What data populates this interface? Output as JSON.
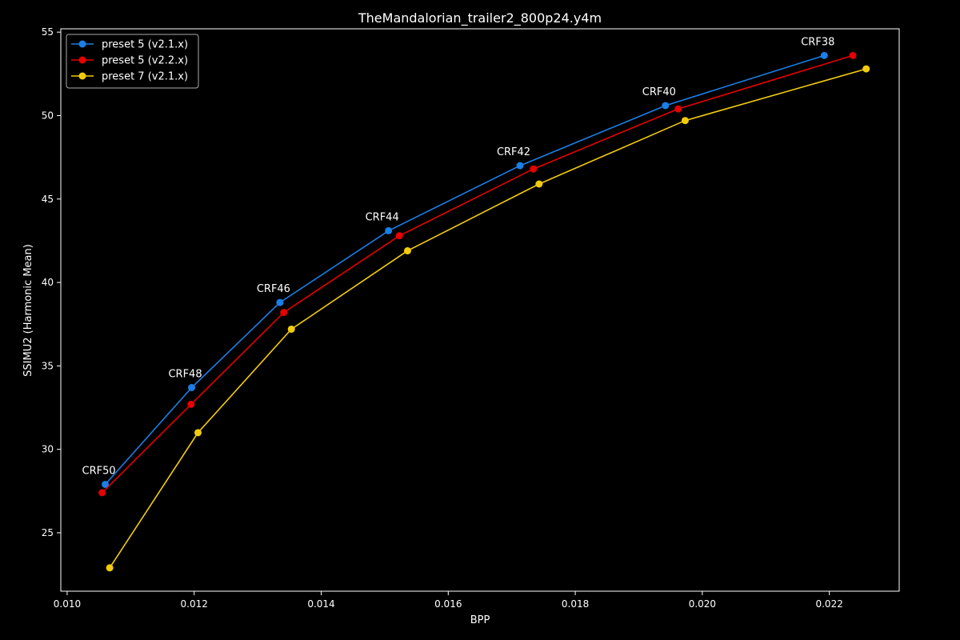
{
  "chart_data": {
    "type": "line",
    "title": "TheMandalorian_trailer2_800p24.y4m",
    "xlabel": "BPP",
    "ylabel": "SSIMU2 (Harmonic Mean)",
    "xlim": [
      0.0099,
      0.0231
    ],
    "ylim": [
      21.5,
      55.2
    ],
    "xticks": [
      0.01,
      0.012,
      0.014,
      0.016,
      0.018,
      0.02,
      0.022
    ],
    "xtick_labels": [
      "0.010",
      "0.012",
      "0.014",
      "0.016",
      "0.018",
      "0.020",
      "0.022"
    ],
    "yticks": [
      25,
      30,
      35,
      40,
      45,
      50,
      55
    ],
    "ytick_labels": [
      "25",
      "30",
      "35",
      "40",
      "45",
      "50",
      "55"
    ],
    "grid": false,
    "legend_position": "upper-left",
    "series": [
      {
        "name": "preset 5 (v2.1.x)",
        "color": "#1a7fe6",
        "x": [
          0.0106,
          0.01196,
          0.01335,
          0.01506,
          0.01713,
          0.01942,
          0.02192
        ],
        "y": [
          27.9,
          33.7,
          38.8,
          43.1,
          47.0,
          50.6,
          53.6
        ]
      },
      {
        "name": "preset 5 (v2.2.x)",
        "color": "#e60000",
        "x": [
          0.01055,
          0.01195,
          0.01341,
          0.01523,
          0.01734,
          0.01962,
          0.02237
        ],
        "y": [
          27.4,
          32.7,
          38.2,
          42.8,
          46.8,
          50.4,
          53.6
        ]
      },
      {
        "name": "preset 7 (v2.1.x)",
        "color": "#f2cc0c",
        "x": [
          0.01067,
          0.01206,
          0.01353,
          0.01536,
          0.01743,
          0.01973,
          0.02258
        ],
        "y": [
          22.9,
          31.0,
          37.2,
          41.9,
          45.9,
          49.7,
          52.8
        ]
      }
    ],
    "annotations": [
      {
        "text": "CRF50",
        "x": 0.0106,
        "y": 27.9
      },
      {
        "text": "CRF48",
        "x": 0.01196,
        "y": 33.7
      },
      {
        "text": "CRF46",
        "x": 0.01335,
        "y": 38.8
      },
      {
        "text": "CRF44",
        "x": 0.01506,
        "y": 43.1
      },
      {
        "text": "CRF42",
        "x": 0.01713,
        "y": 47.0
      },
      {
        "text": "CRF40",
        "x": 0.01942,
        "y": 50.6
      },
      {
        "text": "CRF38",
        "x": 0.02192,
        "y": 53.6
      }
    ]
  }
}
